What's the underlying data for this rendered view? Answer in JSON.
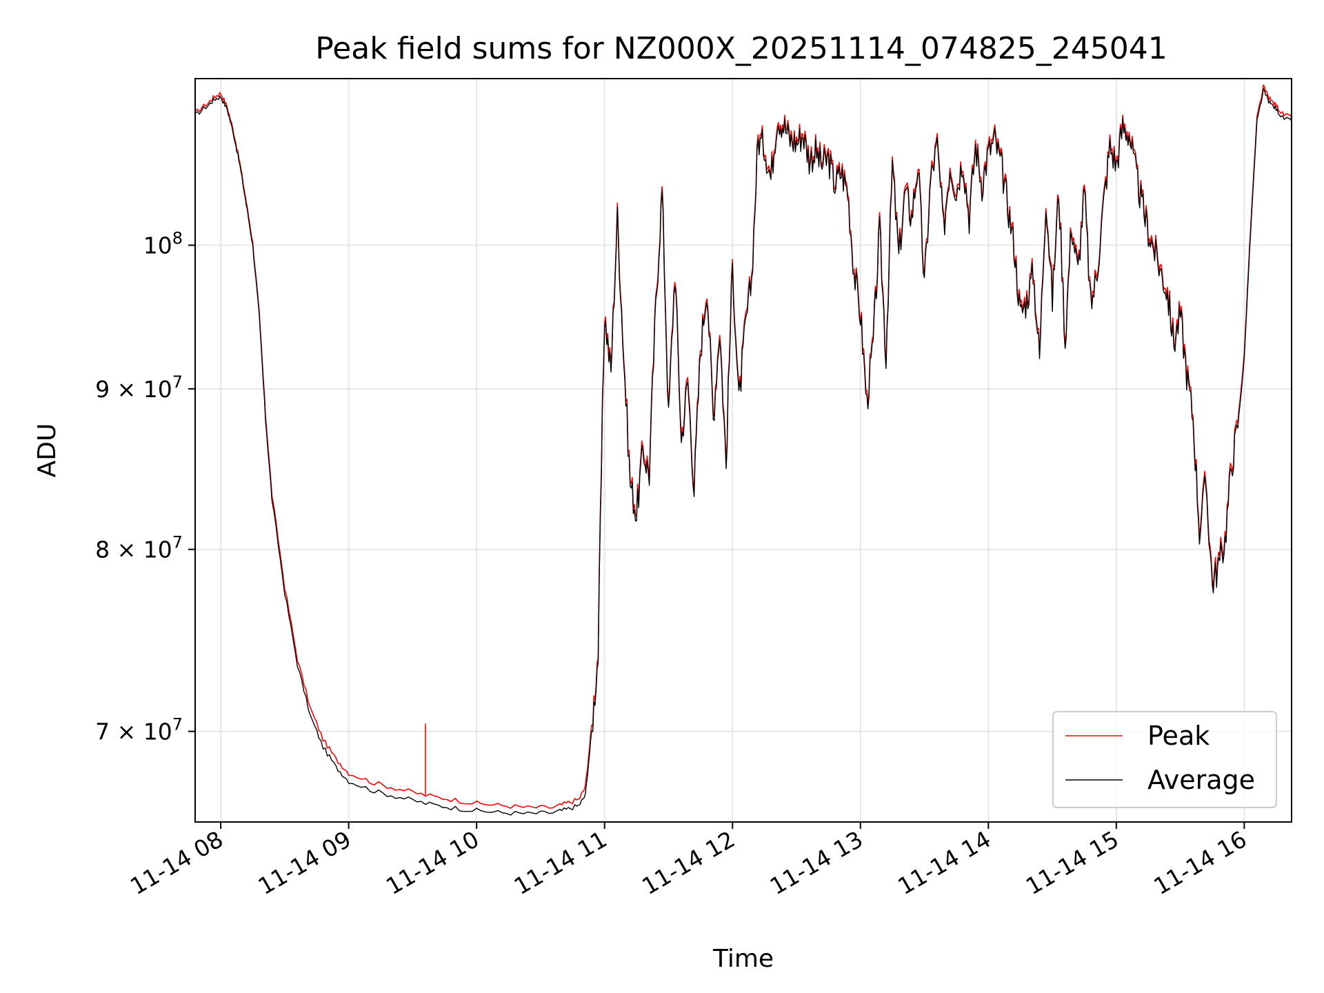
{
  "chart_data": {
    "type": "line",
    "title": "Peak field sums for NZ000X_20251114_074825_245041",
    "xlabel": "Time",
    "ylabel": "ADU",
    "y_scale": "log",
    "ylim": [
      65500000,
      113000000
    ],
    "xlim": [
      7.8,
      16.37
    ],
    "x_tick_labels": [
      "11-14 08",
      "11-14 09",
      "11-14 10",
      "11-14 11",
      "11-14 12",
      "11-14 13",
      "11-14 14",
      "11-14 15",
      "11-14 16"
    ],
    "x_tick_hours": [
      8,
      9,
      10,
      11,
      12,
      13,
      14,
      15,
      16
    ],
    "y_tick_labels": [
      {
        "base": "10",
        "exp": "8",
        "mantissa": "",
        "value": 100000000
      },
      {
        "base": "10",
        "exp": "7",
        "mantissa": "9",
        "value": 90000000
      },
      {
        "base": "10",
        "exp": "7",
        "mantissa": "8",
        "value": 80000000
      },
      {
        "base": "10",
        "exp": "7",
        "mantissa": "7",
        "value": 70000000
      }
    ],
    "grid": true,
    "legend": {
      "position": "lower-right",
      "entries": [
        "Peak",
        "Average"
      ]
    },
    "series": [
      {
        "name": "Average",
        "color": "#000000",
        "x": [
          7.8,
          7.9,
          7.95,
          8.0,
          8.05,
          8.1,
          8.15,
          8.2,
          8.25,
          8.3,
          8.35,
          8.4,
          8.5,
          8.6,
          8.7,
          8.8,
          8.9,
          9.0,
          9.2,
          9.4,
          9.6,
          9.8,
          10.0,
          10.2,
          10.4,
          10.6,
          10.7,
          10.8,
          10.85,
          10.9,
          10.95,
          11.0,
          11.05,
          11.1,
          11.15,
          11.2,
          11.25,
          11.3,
          11.35,
          11.4,
          11.45,
          11.5,
          11.55,
          11.6,
          11.65,
          11.7,
          11.75,
          11.8,
          11.85,
          11.9,
          11.95,
          12.0,
          12.05,
          12.1,
          12.15,
          12.2,
          12.25,
          12.3,
          12.35,
          12.4,
          12.45,
          12.5,
          12.55,
          12.6,
          12.65,
          12.7,
          12.75,
          12.8,
          12.85,
          12.9,
          12.95,
          13.0,
          13.05,
          13.1,
          13.15,
          13.2,
          13.25,
          13.3,
          13.35,
          13.4,
          13.45,
          13.5,
          13.55,
          13.6,
          13.65,
          13.7,
          13.75,
          13.8,
          13.85,
          13.9,
          13.95,
          14.0,
          14.05,
          14.1,
          14.15,
          14.2,
          14.25,
          14.3,
          14.35,
          14.4,
          14.45,
          14.5,
          14.55,
          14.6,
          14.65,
          14.7,
          14.75,
          14.8,
          14.85,
          14.9,
          14.95,
          15.0,
          15.05,
          15.1,
          15.15,
          15.2,
          15.25,
          15.3,
          15.35,
          15.4,
          15.45,
          15.5,
          15.55,
          15.6,
          15.65,
          15.7,
          15.75,
          15.8,
          15.85,
          15.9,
          15.95,
          16.0,
          16.05,
          16.1,
          16.15,
          16.2,
          16.25,
          16.3,
          16.37
        ],
        "y": [
          110000000,
          110800000,
          111300000,
          111500000,
          110500000,
          108500000,
          106000000,
          103000000,
          100000000,
          95000000,
          88000000,
          83000000,
          77500000,
          73500000,
          70800000,
          69200000,
          68200000,
          67500000,
          67000000,
          66700000,
          66400000,
          66200000,
          66050000,
          65950000,
          65900000,
          65950000,
          66100000,
          66300000,
          66800000,
          70000000,
          74000000,
          95000000,
          91000000,
          102000000,
          92000000,
          84000000,
          82000000,
          86000000,
          84500000,
          95500000,
          104000000,
          88000000,
          98000000,
          86500000,
          90500000,
          83500000,
          92500000,
          97000000,
          88000000,
          94000000,
          85000000,
          98500000,
          89000000,
          94000000,
          97500000,
          108000000,
          107500000,
          105000000,
          109800000,
          109200000,
          108000000,
          107800000,
          108500000,
          106500000,
          107000000,
          106000000,
          106500000,
          104500000,
          105500000,
          104000000,
          98000000,
          95000000,
          89000000,
          93000000,
          101000000,
          92000000,
          106000000,
          99000000,
          104000000,
          102000000,
          106000000,
          97000000,
          105000000,
          107500000,
          101000000,
          106000000,
          104000000,
          106500000,
          102000000,
          107500000,
          104500000,
          107000000,
          108000000,
          106000000,
          103000000,
          100000000,
          95000000,
          96000000,
          98000000,
          92000000,
          103500000,
          96000000,
          104000000,
          93000000,
          101500000,
          98000000,
          104000000,
          95500000,
          98000000,
          103000000,
          107500000,
          106000000,
          109000000,
          108500000,
          105500000,
          103000000,
          101000000,
          99500000,
          98000000,
          96500000,
          93000000,
          95000000,
          91000000,
          88000000,
          81000000,
          84000000,
          78000000,
          79000000,
          80500000,
          85000000,
          87500000,
          92000000,
          101000000,
          109500000,
          112000000,
          111000000,
          110500000,
          109800000,
          109500000
        ]
      },
      {
        "name": "Peak",
        "color": "#ff0000",
        "x": [
          7.8,
          7.9,
          7.95,
          8.0,
          8.05,
          8.1,
          8.15,
          8.2,
          8.25,
          8.3,
          8.35,
          8.4,
          8.5,
          8.6,
          8.7,
          8.8,
          8.9,
          9.0,
          9.2,
          9.4,
          9.6,
          9.8,
          10.0,
          10.2,
          10.4,
          10.6,
          10.7,
          10.8,
          10.85,
          10.9,
          10.95,
          11.0,
          11.05,
          11.1,
          11.15,
          11.2,
          11.25,
          11.3,
          11.35,
          11.4,
          11.45,
          11.5,
          11.55,
          11.6,
          11.65,
          11.7,
          11.75,
          11.8,
          11.85,
          11.9,
          11.95,
          12.0,
          12.05,
          12.1,
          12.15,
          12.2,
          12.25,
          12.3,
          12.35,
          12.4,
          12.45,
          12.5,
          12.55,
          12.6,
          12.65,
          12.7,
          12.75,
          12.8,
          12.85,
          12.9,
          12.95,
          13.0,
          13.05,
          13.1,
          13.15,
          13.2,
          13.25,
          13.3,
          13.35,
          13.4,
          13.45,
          13.5,
          13.55,
          13.6,
          13.65,
          13.7,
          13.75,
          13.8,
          13.85,
          13.9,
          13.95,
          14.0,
          14.05,
          14.1,
          14.15,
          14.2,
          14.25,
          14.3,
          14.35,
          14.4,
          14.45,
          14.5,
          14.55,
          14.6,
          14.65,
          14.7,
          14.75,
          14.8,
          14.85,
          14.9,
          14.95,
          15.0,
          15.05,
          15.1,
          15.15,
          15.2,
          15.25,
          15.3,
          15.35,
          15.4,
          15.45,
          15.5,
          15.55,
          15.6,
          15.65,
          15.7,
          15.75,
          15.8,
          15.85,
          15.9,
          15.95,
          16.0,
          16.05,
          16.1,
          16.15,
          16.2,
          16.25,
          16.3,
          16.37
        ],
        "y": [
          110200000,
          111000000,
          111500000,
          111800000,
          110700000,
          108700000,
          106200000,
          103200000,
          100200000,
          95200000,
          88300000,
          83300000,
          77800000,
          73800000,
          71200000,
          69600000,
          68600000,
          67900000,
          67400000,
          67100000,
          66800000,
          66600000,
          66400000,
          66300000,
          66200000,
          66200000,
          66400000,
          66600000,
          67200000,
          70300000,
          74300000,
          95300000,
          91300000,
          102300000,
          92300000,
          84300000,
          82300000,
          86300000,
          84800000,
          95800000,
          104300000,
          88300000,
          98300000,
          86800000,
          90800000,
          83800000,
          92800000,
          97300000,
          88300000,
          94300000,
          85300000,
          98800000,
          89300000,
          94300000,
          97800000,
          108300000,
          107800000,
          105300000,
          110100000,
          109500000,
          108300000,
          108100000,
          108800000,
          106800000,
          107300000,
          106300000,
          106800000,
          104800000,
          105800000,
          104300000,
          98300000,
          95300000,
          89300000,
          93300000,
          101300000,
          92300000,
          106300000,
          99300000,
          104300000,
          102300000,
          106300000,
          97300000,
          105300000,
          107800000,
          101300000,
          106300000,
          104300000,
          106800000,
          102300000,
          107800000,
          104800000,
          107300000,
          108300000,
          106300000,
          103300000,
          100300000,
          95300000,
          96300000,
          98300000,
          92300000,
          103800000,
          96300000,
          104300000,
          93300000,
          101800000,
          98300000,
          104300000,
          95800000,
          98300000,
          103300000,
          107800000,
          106300000,
          109300000,
          108800000,
          105800000,
          103300000,
          101300000,
          99800000,
          98300000,
          96800000,
          93300000,
          95300000,
          91300000,
          88300000,
          81300000,
          84300000,
          78300000,
          79300000,
          80800000,
          85300000,
          87800000,
          92300000,
          101300000,
          109800000,
          112300000,
          111300000,
          110800000,
          110100000,
          109800000
        ]
      }
    ],
    "annotations": [
      {
        "type": "spike",
        "series": "Peak",
        "x": 9.6,
        "y": 70400000
      }
    ]
  }
}
